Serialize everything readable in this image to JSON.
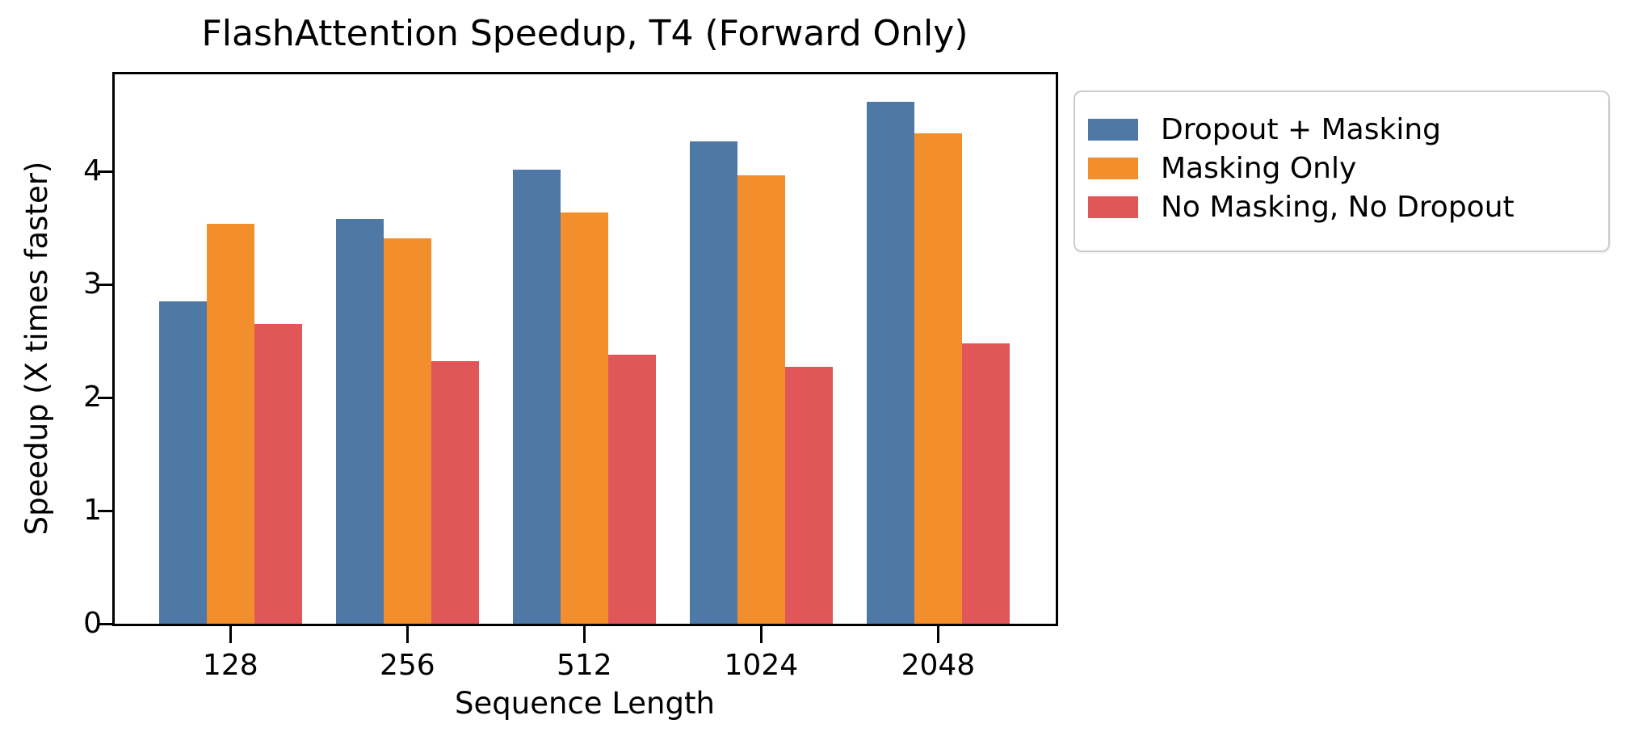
{
  "title": "FlashAttention Speedup, T4 (Forward Only)",
  "chart_data": {
    "type": "bar",
    "title": "FlashAttention Speedup, T4 (Forward Only)",
    "xlabel": "Sequence Length",
    "ylabel": "Speedup (X times faster)",
    "categories": [
      "128",
      "256",
      "512",
      "1024",
      "2048"
    ],
    "series": [
      {
        "name": "Dropout + Masking",
        "color": "#4E79A7",
        "values": [
          2.85,
          3.58,
          4.02,
          4.27,
          4.62
        ]
      },
      {
        "name": "Masking Only",
        "color": "#F28E2B",
        "values": [
          3.54,
          3.41,
          3.64,
          3.97,
          4.34
        ]
      },
      {
        "name": "No Masking, No Dropout",
        "color": "#E15759",
        "values": [
          2.65,
          2.32,
          2.38,
          2.27,
          2.48
        ]
      }
    ],
    "y_ticks": [
      0,
      1,
      2,
      3,
      4
    ],
    "ylim": [
      0,
      4.86
    ],
    "grid": false,
    "legend_position": "outside-upper-right",
    "background": "#ffffff",
    "spine_color": "#000000"
  }
}
